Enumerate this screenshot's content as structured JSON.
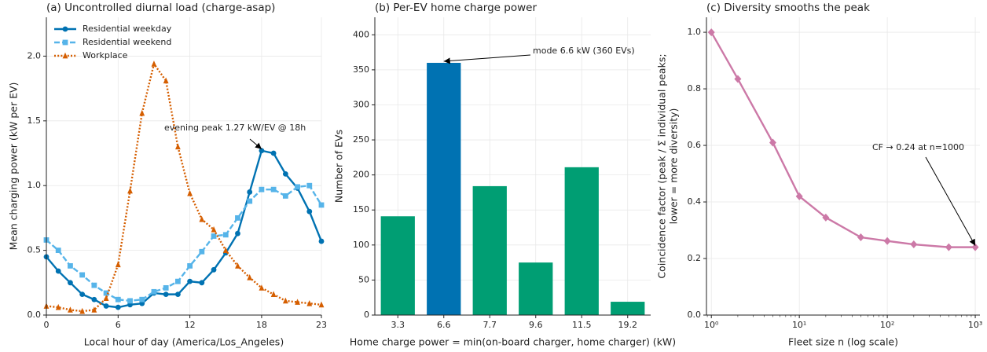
{
  "chart_data": [
    {
      "type": "line",
      "title": "(a) Uncontrolled diurnal load (charge-asap)",
      "x_label": "Local hour of day (America/Los_Angeles)",
      "y_label": [
        "Mean charging power (kW per EV)"
      ],
      "x": [
        0,
        1,
        2,
        3,
        4,
        5,
        6,
        7,
        8,
        9,
        10,
        11,
        12,
        13,
        14,
        15,
        16,
        17,
        18,
        19,
        20,
        21,
        22,
        23
      ],
      "series": [
        {
          "name": "Residential weekday",
          "color": "#0072b2",
          "style": "solid",
          "marker": "circle",
          "values": [
            0.45,
            0.34,
            0.25,
            0.16,
            0.12,
            0.07,
            0.06,
            0.08,
            0.09,
            0.17,
            0.16,
            0.16,
            0.26,
            0.25,
            0.35,
            0.48,
            0.63,
            0.95,
            1.27,
            1.25,
            1.09,
            0.98,
            0.8,
            0.57
          ]
        },
        {
          "name": "Residential weekend",
          "color": "#56b4e9",
          "style": "dashed",
          "marker": "square",
          "values": [
            0.58,
            0.5,
            0.38,
            0.31,
            0.23,
            0.17,
            0.12,
            0.11,
            0.12,
            0.18,
            0.21,
            0.26,
            0.38,
            0.49,
            0.61,
            0.62,
            0.75,
            0.88,
            0.97,
            0.97,
            0.92,
            0.99,
            1.0,
            0.85
          ]
        },
        {
          "name": "Workplace",
          "color": "#d55e00",
          "style": "dotted",
          "marker": "triangle",
          "values": [
            0.07,
            0.06,
            0.04,
            0.03,
            0.04,
            0.13,
            0.39,
            0.96,
            1.56,
            1.94,
            1.81,
            1.3,
            0.94,
            0.74,
            0.66,
            0.5,
            0.38,
            0.29,
            0.21,
            0.16,
            0.11,
            0.1,
            0.09,
            0.08
          ]
        }
      ],
      "xlim": [
        0,
        23
      ],
      "xticks": [
        0,
        6,
        12,
        18,
        23
      ],
      "ylim": [
        0,
        2.3
      ],
      "yticks": [
        {
          "value": 0,
          "label": "0.0"
        },
        0.5,
        {
          "value": 1,
          "label": "1.0"
        },
        1.5,
        {
          "value": 2,
          "label": "2.0"
        }
      ],
      "grid": true,
      "legend": "upper left",
      "annotation": "evening peak 1.27 kW/EV @ 18h"
    },
    {
      "type": "bar",
      "title": "(b) Per-EV home charge power",
      "x_label": "Home charge power = min(on-board charger, home charger) (kW)",
      "y_label": [
        "Number of EVs"
      ],
      "categories": [
        "3.3",
        "6.6",
        "7.7",
        "9.6",
        "11.5",
        "19.2"
      ],
      "values": [
        141,
        360,
        184,
        75,
        211,
        19
      ],
      "colors": [
        "#009e73",
        "#0072b2",
        "#009e73",
        "#009e73",
        "#009e73",
        "#009e73"
      ],
      "ylim": [
        0,
        425
      ],
      "yticks": [
        0,
        50,
        100,
        150,
        200,
        250,
        300,
        350,
        400
      ],
      "grid": true,
      "annotation": "mode 6.6 kW (360 EVs)"
    },
    {
      "type": "line",
      "title": "(c) Diversity smooths the peak",
      "x_label": "Fleet size n (log scale)",
      "y_label": [
        "Coincidence factor (peak / Σ individual peaks;",
        "lower = more diversity)"
      ],
      "x": [
        1,
        2,
        5,
        10,
        20,
        50,
        100,
        200,
        500,
        1000
      ],
      "series": [
        {
          "name": "Coincidence factor",
          "color": "#cc79a7",
          "style": "solid",
          "marker": "diamond",
          "values": [
            1.0,
            0.835,
            0.61,
            0.42,
            0.345,
            0.275,
            0.262,
            0.25,
            0.24,
            0.24
          ]
        }
      ],
      "xlog": true,
      "xlim": [
        0.88,
        1130
      ],
      "xticks": [
        {
          "value": 1,
          "label": "10⁰"
        },
        {
          "value": 10,
          "label": "10¹"
        },
        {
          "value": 100,
          "label": "10²"
        },
        {
          "value": 1000,
          "label": "10³"
        }
      ],
      "ylim": [
        0,
        1.053
      ],
      "yticks": [
        {
          "value": 0,
          "label": "0.0"
        },
        0.2,
        0.4,
        0.6,
        0.8,
        {
          "value": 1,
          "label": "1.0"
        }
      ],
      "grid": true,
      "annotation": "CF → 0.24 at n=1000"
    }
  ]
}
